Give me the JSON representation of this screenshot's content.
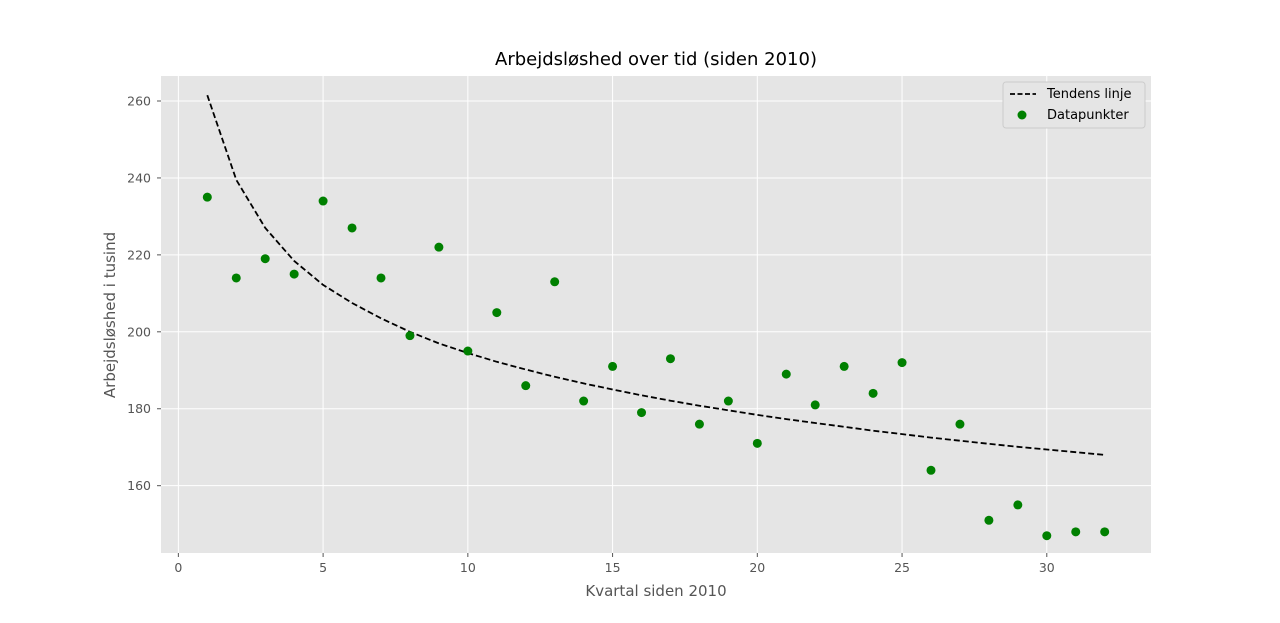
{
  "chart_data": {
    "type": "scatter",
    "title": "Arbejdsløshed over tid (siden 2010)",
    "xlabel": "Kvartal siden 2010",
    "ylabel": "Arbejdsløshed i tusind",
    "xlim": [
      -0.6,
      33.6
    ],
    "ylim": [
      142.5,
      266.5
    ],
    "xticks": [
      0,
      5,
      10,
      15,
      20,
      25,
      30
    ],
    "yticks": [
      160,
      180,
      200,
      220,
      240,
      260
    ],
    "grid": true,
    "legend_position": "top-right",
    "colors": {
      "plot_background": "#e5e5e5",
      "grid": "#ffffff",
      "points": "#008000",
      "trend": "#000000",
      "text": "#555555"
    },
    "series": [
      {
        "name": "Tendens linje",
        "kind": "line",
        "style": "dashed",
        "x": [
          1,
          2,
          3,
          4,
          5,
          6,
          7,
          8,
          9,
          10,
          11,
          12,
          13,
          14,
          15,
          16,
          17,
          18,
          19,
          20,
          21,
          22,
          23,
          24,
          25,
          26,
          27,
          28,
          29,
          30,
          31,
          32
        ],
        "y": [
          261.5,
          239.5,
          227,
          218.4,
          212.2,
          207.5,
          203.5,
          200,
          197,
          194.5,
          192.2,
          190.2,
          188.3,
          186.6,
          185,
          183.5,
          182.1,
          180.8,
          179.6,
          178.4,
          177.3,
          176.3,
          175.3,
          174.3,
          173.4,
          172.5,
          171.7,
          170.9,
          170.1,
          169.4,
          168.7,
          168
        ]
      },
      {
        "name": "Datapunkter",
        "kind": "scatter",
        "x": [
          1,
          2,
          3,
          4,
          5,
          6,
          7,
          8,
          9,
          10,
          11,
          12,
          13,
          14,
          15,
          16,
          17,
          18,
          19,
          20,
          21,
          22,
          23,
          24,
          25,
          26,
          27,
          28,
          29,
          30,
          31,
          32
        ],
        "y": [
          235,
          214,
          219,
          215,
          234,
          227,
          214,
          199,
          222,
          195,
          205,
          186,
          213,
          182,
          191,
          179,
          193,
          176,
          182,
          171,
          189,
          181,
          191,
          184,
          192,
          164,
          176,
          151,
          155,
          147,
          148,
          148
        ]
      }
    ]
  }
}
